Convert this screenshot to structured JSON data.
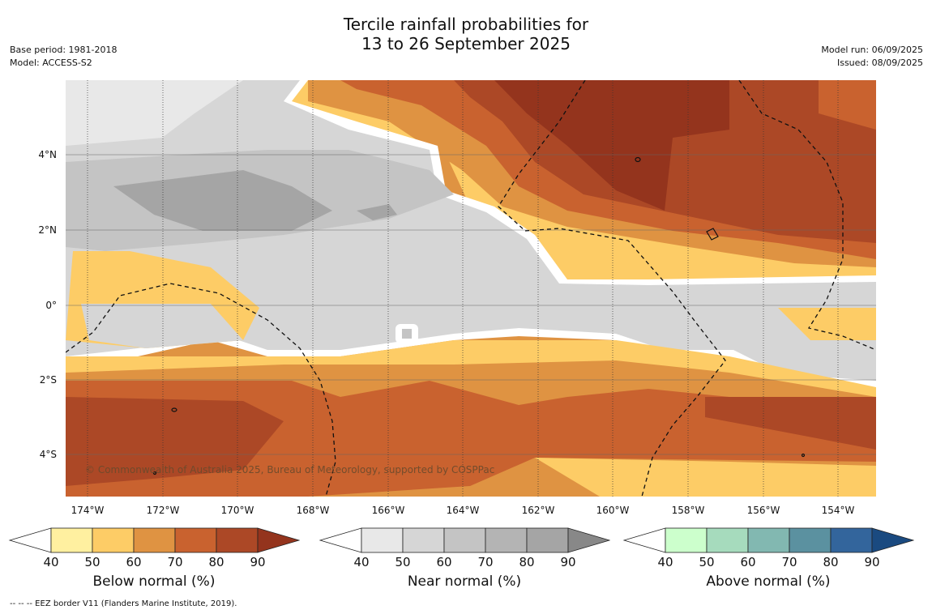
{
  "title": {
    "line1": "Tercile rainfall probabilities for",
    "line2": "13 to 26 September 2025"
  },
  "meta": {
    "base_period": "Base period: 1981-2018",
    "model": "Model: ACCESS-S2",
    "model_run": "Model run: 06/09/2025",
    "issued": "Issued: 08/09/2025"
  },
  "map": {
    "lat_labels": [
      "4°N",
      "2°N",
      "0°",
      "2°S",
      "4°S"
    ],
    "lon_labels": [
      "174°W",
      "172°W",
      "170°W",
      "168°W",
      "166°W",
      "164°W",
      "162°W",
      "160°W",
      "158°W",
      "156°W",
      "154°W"
    ],
    "credit": "© Commonwealth of Australia 2025, Bureau of Meteorology, supported by COSPPac"
  },
  "legends": [
    {
      "title": "Below normal (%)",
      "ticks": [
        "40",
        "50",
        "60",
        "70",
        "80",
        "90"
      ],
      "colors": [
        "#ffffff",
        "#fff0a0",
        "#fdcc66",
        "#df9342",
        "#c9622f",
        "#ac4826",
        "#94341d"
      ]
    },
    {
      "title": "Near normal (%)",
      "ticks": [
        "40",
        "50",
        "60",
        "70",
        "80",
        "90"
      ],
      "colors": [
        "#ffffff",
        "#e8e8e8",
        "#d6d6d6",
        "#c4c4c4",
        "#b4b4b4",
        "#a5a5a5",
        "#888888"
      ]
    },
    {
      "title": "Above normal (%)",
      "ticks": [
        "40",
        "50",
        "60",
        "70",
        "80",
        "90"
      ],
      "colors": [
        "#ffffff",
        "#ccffcc",
        "#a6dbbd",
        "#82b8b1",
        "#5b91a0",
        "#33659c",
        "#1a4a80"
      ]
    }
  ],
  "footnote": "--  --  -- EEZ border V11 (Flanders Marine Institute, 2019)."
}
